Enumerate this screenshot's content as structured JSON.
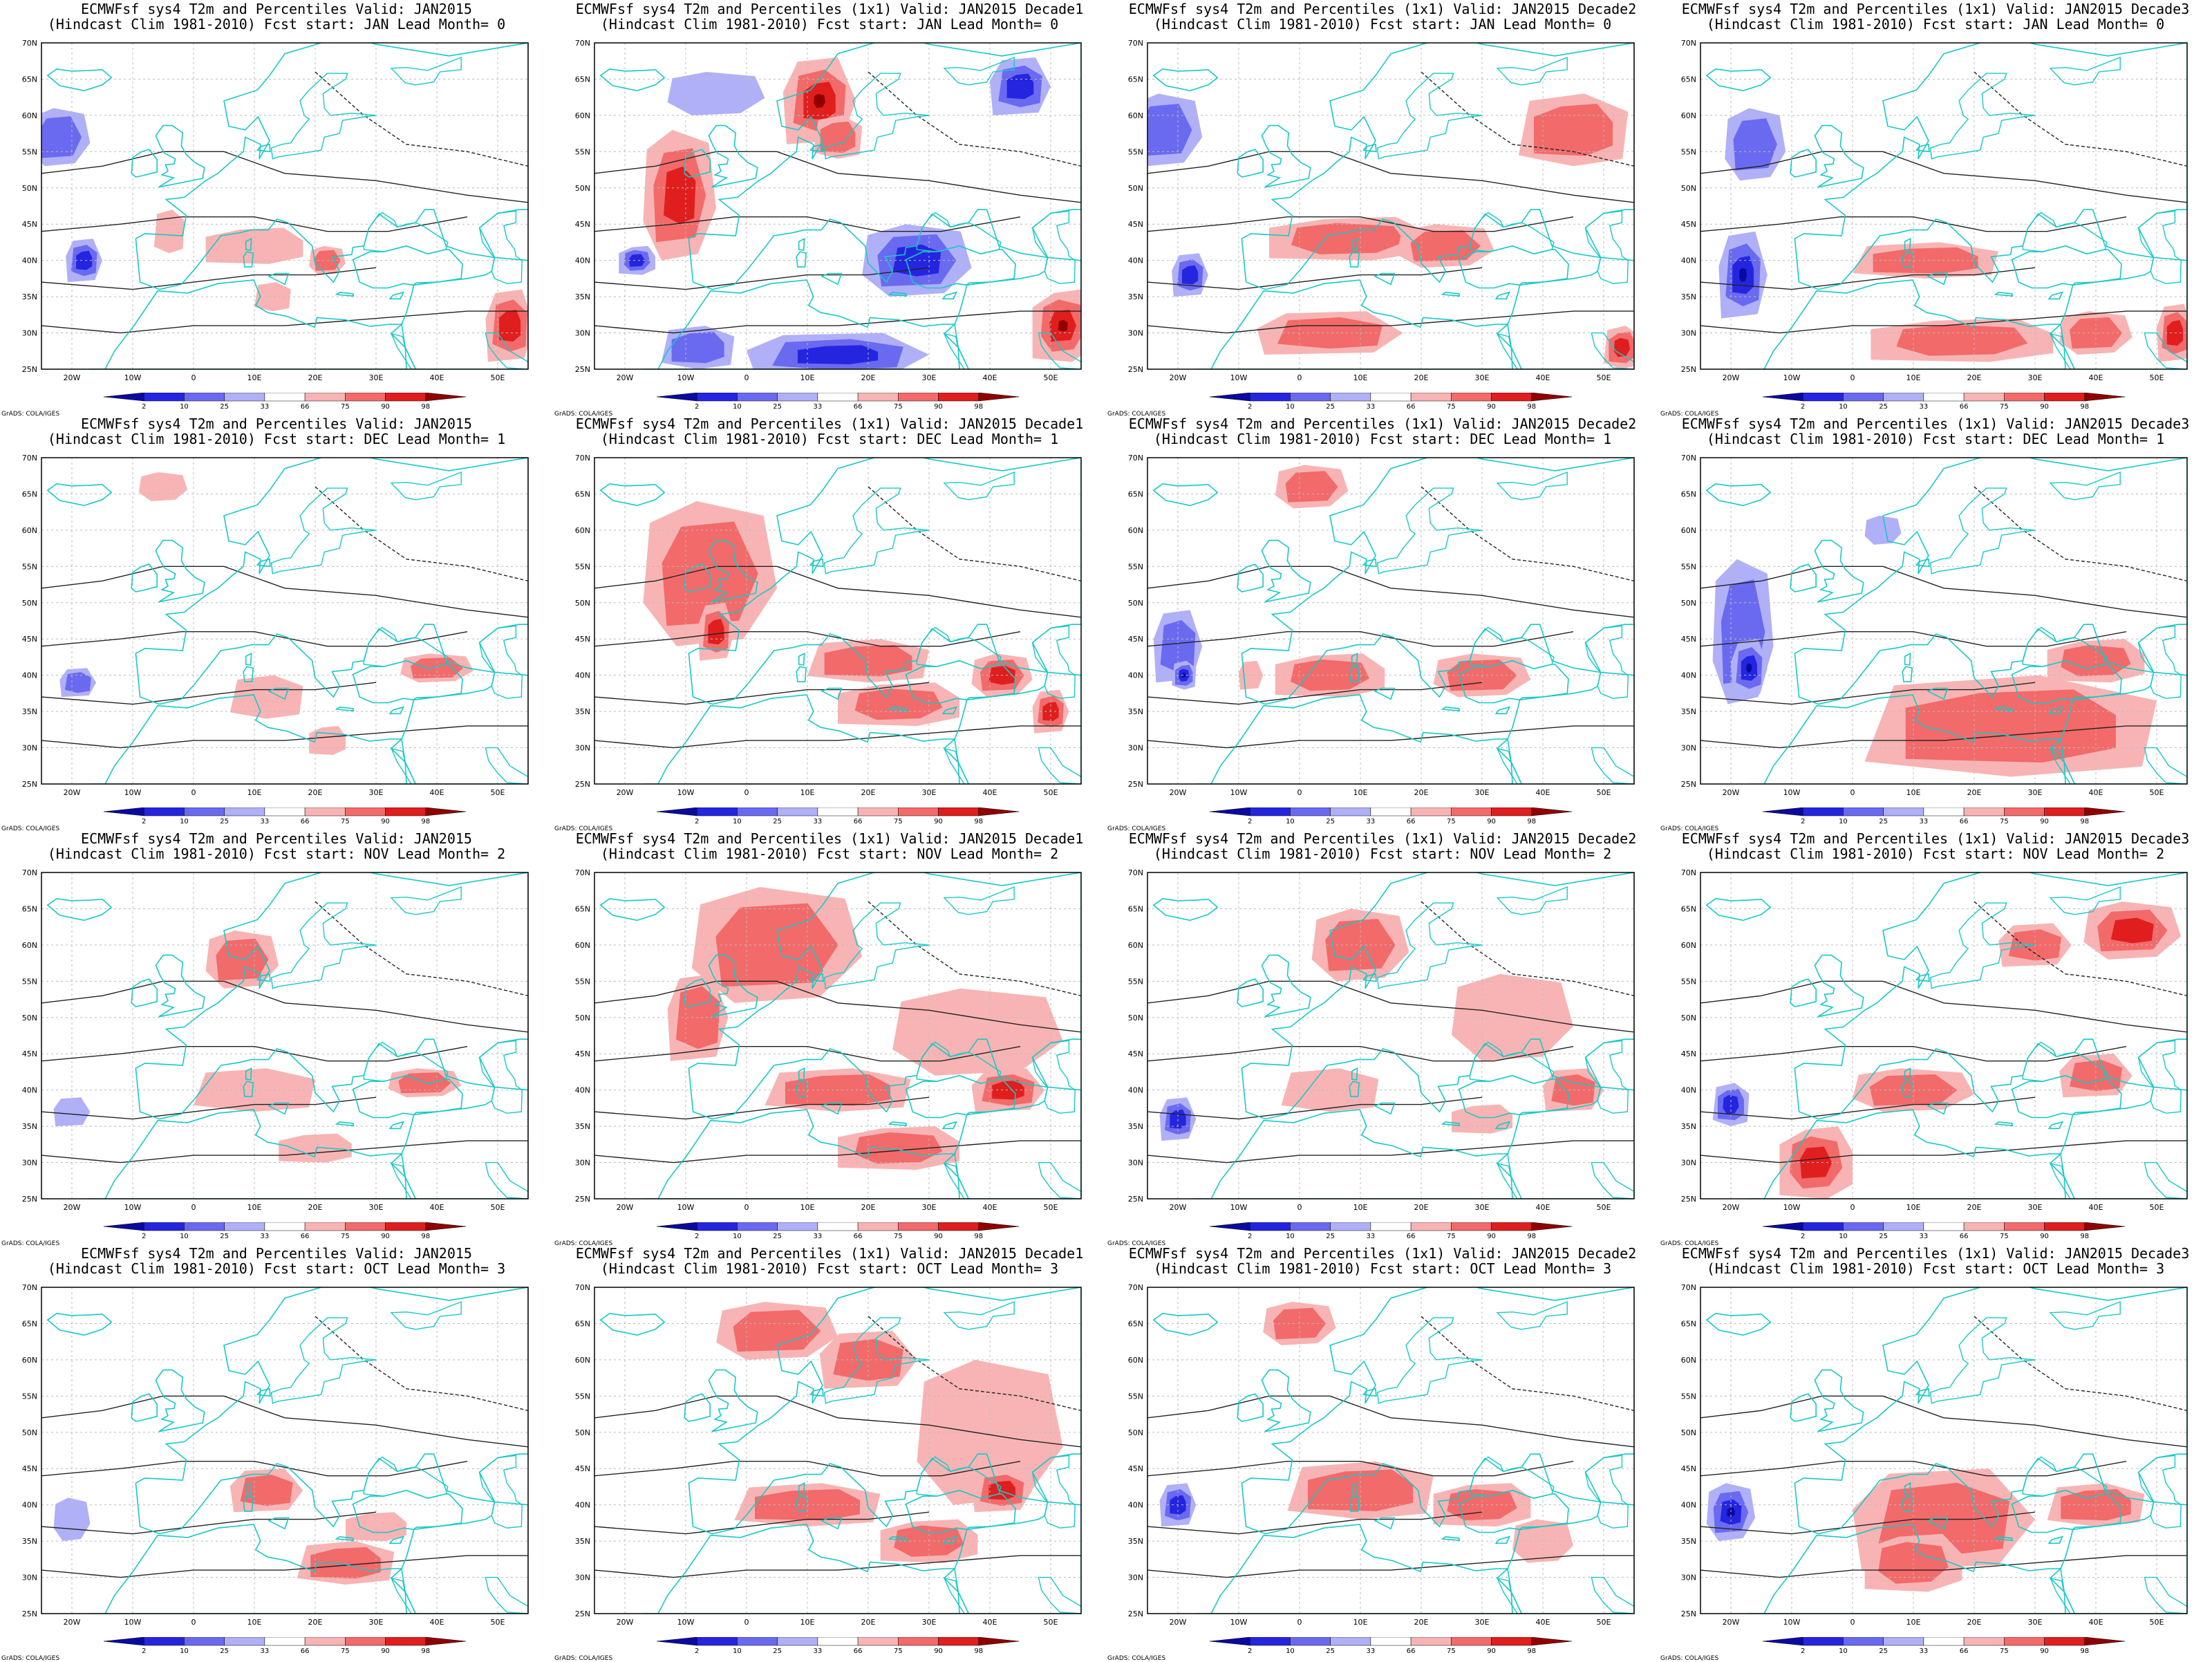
{
  "title_line2_template": "(Hindcast Clim 1981-2010) Fcst start: {start}  Lead Month= {lead}",
  "columns": [
    {
      "line1": "ECMWFsf sys4  T2m and Percentiles Valid: JAN2015"
    },
    {
      "line1": "ECMWFsf sys4  T2m and Percentiles (1x1) Valid: JAN2015 Decade1"
    },
    {
      "line1": "ECMWFsf sys4  T2m and Percentiles (1x1) Valid: JAN2015 Decade2"
    },
    {
      "line1": "ECMWFsf sys4  T2m and Percentiles (1x1) Valid: JAN2015 Decade3"
    }
  ],
  "rows": [
    {
      "start": "JAN",
      "lead": "0"
    },
    {
      "start": "DEC",
      "lead": "1"
    },
    {
      "start": "NOV",
      "lead": "2"
    },
    {
      "start": "OCT",
      "lead": "3"
    }
  ],
  "panels": [
    [
      {
        "line2": "(Hindcast Clim 1981-2010) Fcst start: JAN  Lead Month= 0"
      },
      {
        "line2": "(Hindcast Clim 1981-2010) Fcst start: JAN  Lead Month= 0"
      },
      {
        "line2": "(Hindcast Clim 1981-2010) Fcst start: JAN  Lead Month= 0"
      },
      {
        "line2": "(Hindcast Clim 1981-2010) Fcst start: JAN  Lead Month= 0"
      }
    ],
    [
      {
        "line2": "(Hindcast Clim 1981-2010) Fcst start: DEC  Lead Month= 1"
      },
      {
        "line2": "(Hindcast Clim 1981-2010) Fcst start: DEC  Lead Month= 1"
      },
      {
        "line2": "(Hindcast Clim 1981-2010) Fcst start: DEC  Lead Month= 1"
      },
      {
        "line2": "(Hindcast Clim 1981-2010) Fcst start: DEC  Lead Month= 1"
      }
    ],
    [
      {
        "line2": "(Hindcast Clim 1981-2010) Fcst start: NOV  Lead Month= 2"
      },
      {
        "line2": "(Hindcast Clim 1981-2010) Fcst start: NOV  Lead Month= 2"
      },
      {
        "line2": "(Hindcast Clim 1981-2010) Fcst start: NOV  Lead Month= 2"
      },
      {
        "line2": "(Hindcast Clim 1981-2010) Fcst start: NOV  Lead Month= 2"
      }
    ],
    [
      {
        "line2": "(Hindcast Clim 1981-2010) Fcst start: OCT  Lead Month= 3"
      },
      {
        "line2": "(Hindcast Clim 1981-2010) Fcst start: OCT  Lead Month= 3"
      },
      {
        "line2": "(Hindcast Clim 1981-2010) Fcst start: OCT  Lead Month= 3"
      },
      {
        "line2": "(Hindcast Clim 1981-2010) Fcst start: OCT  Lead Month= 3"
      }
    ]
  ],
  "map": {
    "lon_range": [
      -25,
      55
    ],
    "lat_range": [
      25,
      70
    ],
    "lat_labels": [
      "70N",
      "65N",
      "60N",
      "55N",
      "50N",
      "45N",
      "40N",
      "35N",
      "30N",
      "25N"
    ],
    "lon_labels": [
      "20W",
      "10W",
      "0",
      "10E",
      "20E",
      "30E",
      "40E",
      "50E"
    ],
    "coast_color": "#17c8c8",
    "contour_color": "#222222",
    "grid_lines": true
  },
  "colorbar": {
    "labels": [
      "2",
      "10",
      "25",
      "33",
      "66",
      "75",
      "90",
      "98"
    ],
    "colors": [
      "#0a0aa0",
      "#2525e0",
      "#6a6af0",
      "#b0b0f8",
      "#ffffff",
      "#f8b4b4",
      "#f26a6a",
      "#e01e1e",
      "#900000"
    ]
  },
  "credit": "GrADS: COLA/IGES"
}
